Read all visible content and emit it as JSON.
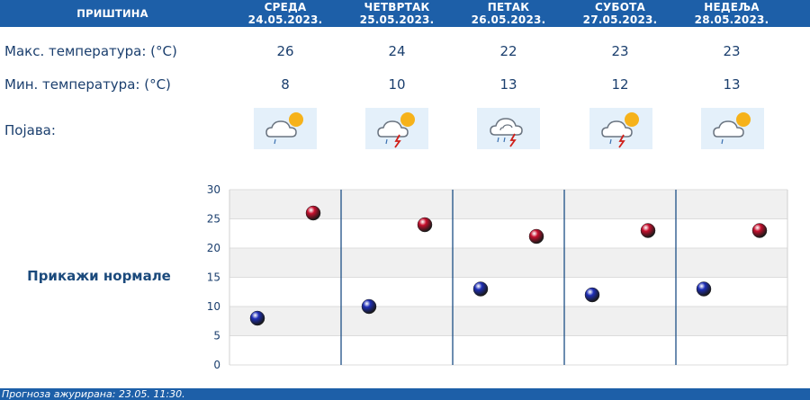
{
  "header": {
    "city": "ПРИШТИНА"
  },
  "days": [
    {
      "name": "СРЕДА",
      "date": "24.05.2023.",
      "max": 26,
      "min": 8,
      "icon": "cloud-sun-rain-icon"
    },
    {
      "name": "ЧЕТВРТАК",
      "date": "25.05.2023.",
      "max": 24,
      "min": 10,
      "icon": "cloud-sun-thunder-icon"
    },
    {
      "name": "ПЕТАК",
      "date": "26.05.2023.",
      "max": 22,
      "min": 13,
      "icon": "cloud-thunder-rain-icon"
    },
    {
      "name": "СУБОТА",
      "date": "27.05.2023.",
      "max": 23,
      "min": 12,
      "icon": "cloud-sun-thunder-icon"
    },
    {
      "name": "НЕДЕЉА",
      "date": "28.05.2023.",
      "max": 23,
      "min": 13,
      "icon": "cloud-sun-rain-icon"
    }
  ],
  "labels": {
    "max_temp": "Макс. температура: (°C)",
    "min_temp": "Мин. температура: (°C)",
    "phenomenon": "Појава:"
  },
  "normals_link": "Прикажи нормале",
  "chart_data": {
    "type": "scatter",
    "title": "",
    "xlabel": "",
    "ylabel": "",
    "ylim": [
      0,
      30
    ],
    "yticks": [
      0,
      5,
      10,
      15,
      20,
      25,
      30
    ],
    "grid": true,
    "series": [
      {
        "values": [
          26,
          24,
          22,
          23,
          23
        ],
        "color": "#c8102e"
      },
      {
        "values": [
          8,
          10,
          13,
          12,
          13
        ],
        "color": "#1f2fb8"
      }
    ]
  },
  "footer": {
    "text": "Прогноза ажурирана:  23.05. 11:30."
  },
  "colors": {
    "header_bg": "#1d5fa8",
    "text": "#1b3f6e",
    "max_dot": "#c8102e",
    "min_dot": "#1f2fb8"
  }
}
